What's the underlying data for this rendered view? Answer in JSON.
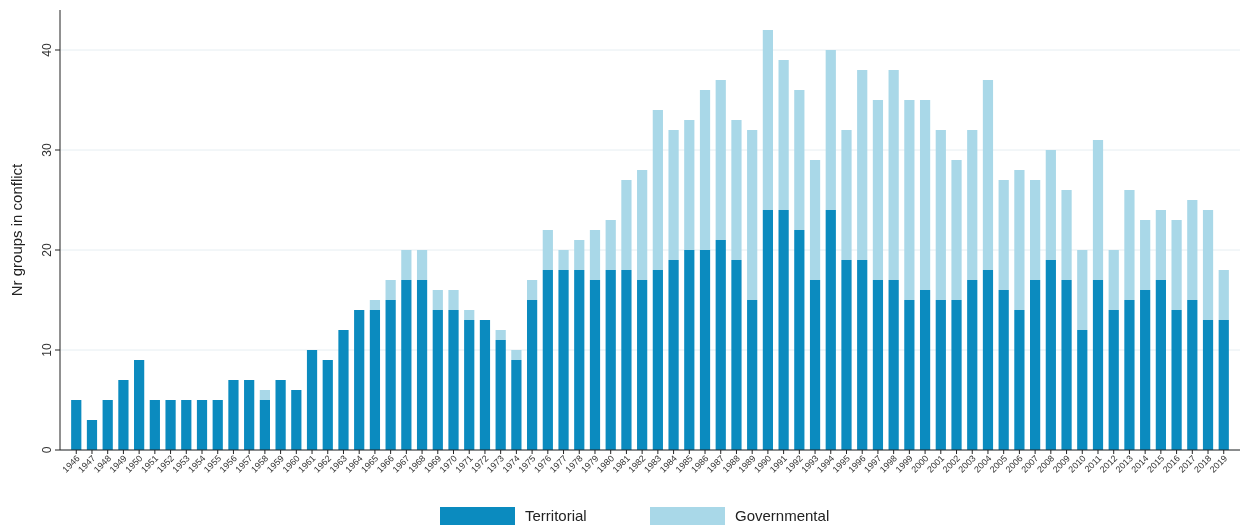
{
  "chart_data": {
    "type": "bar",
    "stacked": true,
    "ylabel": "Nr groups in conflict",
    "categories": [
      "1946",
      "1947",
      "1948",
      "1949",
      "1950",
      "1951",
      "1952",
      "1953",
      "1954",
      "1955",
      "1956",
      "1957",
      "1958",
      "1959",
      "1960",
      "1961",
      "1962",
      "1963",
      "1964",
      "1965",
      "1966",
      "1967",
      "1968",
      "1969",
      "1970",
      "1971",
      "1972",
      "1973",
      "1974",
      "1975",
      "1976",
      "1977",
      "1978",
      "1979",
      "1980",
      "1981",
      "1982",
      "1983",
      "1984",
      "1985",
      "1986",
      "1987",
      "1988",
      "1989",
      "1990",
      "1991",
      "1992",
      "1993",
      "1994",
      "1995",
      "1996",
      "1997",
      "1998",
      "1999",
      "2000",
      "2001",
      "2002",
      "2003",
      "2004",
      "2005",
      "2006",
      "2007",
      "2008",
      "2009",
      "2010",
      "2011",
      "2012",
      "2013",
      "2014",
      "2015",
      "2016",
      "2017",
      "2018",
      "2019"
    ],
    "series": [
      {
        "name": "Territorial",
        "color": "#0b8bbf",
        "values": [
          5,
          3,
          5,
          7,
          9,
          5,
          5,
          5,
          5,
          5,
          7,
          7,
          5,
          7,
          6,
          10,
          9,
          12,
          14,
          14,
          15,
          17,
          17,
          14,
          14,
          13,
          13,
          11,
          9,
          15,
          18,
          18,
          18,
          17,
          18,
          18,
          17,
          18,
          19,
          20,
          20,
          21,
          19,
          15,
          24,
          24,
          22,
          17,
          24,
          19,
          19,
          17,
          17,
          15,
          16,
          15,
          15,
          17,
          18,
          16,
          14,
          17,
          19,
          17,
          12,
          17,
          14,
          15,
          16,
          17,
          14,
          15,
          13,
          13
        ]
      },
      {
        "name": "Governmental",
        "color": "#a9d8e8",
        "values": [
          0,
          0,
          0,
          0,
          0,
          0,
          0,
          0,
          0,
          0,
          0,
          0,
          1,
          0,
          0,
          0,
          0,
          0,
          0,
          1,
          2,
          3,
          3,
          2,
          2,
          1,
          0,
          1,
          1,
          2,
          4,
          2,
          3,
          5,
          5,
          9,
          11,
          16,
          13,
          13,
          16,
          16,
          14,
          17,
          18,
          15,
          14,
          12,
          16,
          13,
          19,
          18,
          21,
          20,
          19,
          17,
          14,
          15,
          19,
          11,
          14,
          10,
          11,
          9,
          8,
          14,
          6,
          11,
          7,
          7,
          9,
          10,
          11,
          5
        ]
      }
    ],
    "ylim": [
      0,
      44
    ],
    "yticks": [
      0,
      10,
      20,
      30,
      40
    ],
    "grid": "y",
    "legend": "bottom"
  }
}
